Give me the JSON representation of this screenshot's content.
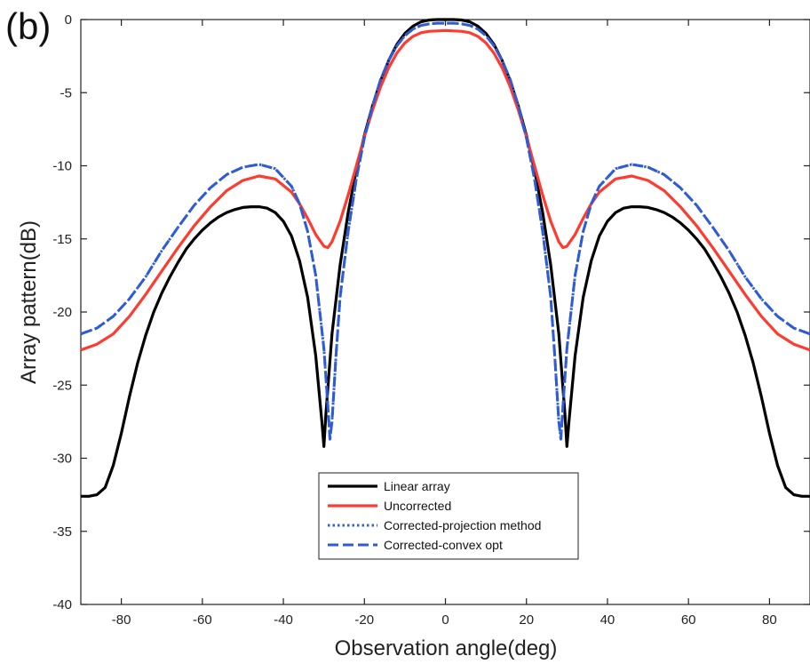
{
  "panel_label": "(b)",
  "chart_data": {
    "type": "line",
    "title": "",
    "xlabel": "Observation angle(deg)",
    "ylabel": "Array pattern(dB)",
    "xlim": [
      -90,
      90
    ],
    "ylim": [
      -40,
      0
    ],
    "xticks": [
      -80,
      -60,
      -40,
      -20,
      0,
      20,
      40,
      60,
      80
    ],
    "yticks": [
      0,
      -5,
      -10,
      -15,
      -20,
      -25,
      -30,
      -35,
      -40
    ],
    "grid": false,
    "legend_position": "lower-center",
    "series": [
      {
        "name": "Linear array",
        "color": "#000000",
        "style": "solid",
        "x": [
          -90,
          -88,
          -86,
          -84,
          -82,
          -80,
          -78,
          -76,
          -74,
          -72,
          -70,
          -68,
          -66,
          -64,
          -62,
          -60,
          -58,
          -56,
          -54,
          -52,
          -50,
          -48,
          -46,
          -44,
          -42,
          -40,
          -38,
          -36,
          -34,
          -32,
          -30.5,
          -30,
          -29.5,
          -28,
          -26,
          -24,
          -22,
          -20,
          -18,
          -16,
          -14,
          -12,
          -10,
          -8,
          -6,
          -4,
          -2,
          0,
          2,
          4,
          6,
          8,
          10,
          12,
          14,
          16,
          18,
          20,
          22,
          24,
          26,
          28,
          29.5,
          30,
          30.5,
          32,
          34,
          36,
          38,
          40,
          42,
          44,
          46,
          48,
          50,
          52,
          54,
          56,
          58,
          60,
          62,
          64,
          66,
          68,
          70,
          72,
          74,
          76,
          78,
          80,
          82,
          84,
          86,
          88,
          90
        ],
        "y": [
          -32.6,
          -32.6,
          -32.5,
          -32.0,
          -30.5,
          -28.3,
          -25.8,
          -23.5,
          -21.6,
          -20.0,
          -18.7,
          -17.6,
          -16.6,
          -15.7,
          -15.0,
          -14.4,
          -13.9,
          -13.5,
          -13.2,
          -13.0,
          -12.85,
          -12.8,
          -12.8,
          -12.9,
          -13.2,
          -13.8,
          -14.8,
          -16.5,
          -19.0,
          -23.0,
          -27.5,
          -29.2,
          -27.0,
          -21.5,
          -16.8,
          -13.2,
          -10.3,
          -7.9,
          -5.9,
          -4.2,
          -2.8,
          -1.7,
          -0.95,
          -0.45,
          -0.15,
          -0.03,
          0,
          0,
          0,
          -0.03,
          -0.15,
          -0.45,
          -0.95,
          -1.7,
          -2.8,
          -4.2,
          -5.9,
          -7.9,
          -10.3,
          -13.2,
          -16.8,
          -21.5,
          -27.0,
          -29.2,
          -27.5,
          -23.0,
          -19.0,
          -16.5,
          -14.8,
          -13.8,
          -13.2,
          -12.9,
          -12.8,
          -12.8,
          -12.85,
          -13.0,
          -13.2,
          -13.5,
          -13.9,
          -14.4,
          -15.0,
          -15.7,
          -16.6,
          -17.6,
          -18.7,
          -20.0,
          -21.6,
          -23.5,
          -25.8,
          -28.3,
          -30.5,
          -32.0,
          -32.5,
          -32.6,
          -32.6
        ]
      },
      {
        "name": "Uncorrected",
        "color": "#ff3b2f",
        "style": "solid",
        "x": [
          -90,
          -86,
          -82,
          -78,
          -74,
          -70,
          -66,
          -62,
          -58,
          -54,
          -50,
          -46,
          -42,
          -38,
          -36,
          -34,
          -32,
          -30,
          -29,
          -28,
          -26,
          -24,
          -22,
          -20,
          -18,
          -16,
          -14,
          -12,
          -10,
          -8,
          -6,
          -4,
          -2,
          0,
          2,
          4,
          6,
          8,
          10,
          12,
          14,
          16,
          18,
          20,
          22,
          24,
          26,
          28,
          29,
          30,
          32,
          34,
          36,
          38,
          42,
          46,
          50,
          54,
          58,
          62,
          66,
          70,
          74,
          78,
          82,
          86,
          90
        ],
        "y": [
          -22.6,
          -22.2,
          -21.5,
          -20.3,
          -18.8,
          -17.2,
          -15.6,
          -14.1,
          -12.8,
          -11.7,
          -11.0,
          -10.7,
          -10.9,
          -11.8,
          -12.6,
          -13.6,
          -14.7,
          -15.5,
          -15.6,
          -15.2,
          -13.8,
          -12.0,
          -10.0,
          -8.0,
          -6.2,
          -4.6,
          -3.3,
          -2.3,
          -1.6,
          -1.15,
          -0.9,
          -0.8,
          -0.78,
          -0.75,
          -0.78,
          -0.8,
          -0.9,
          -1.15,
          -1.6,
          -2.3,
          -3.3,
          -4.6,
          -6.2,
          -8.0,
          -10.0,
          -12.0,
          -13.8,
          -15.2,
          -15.6,
          -15.5,
          -14.7,
          -13.6,
          -12.6,
          -11.8,
          -10.9,
          -10.7,
          -11.0,
          -11.7,
          -12.8,
          -14.1,
          -15.6,
          -17.2,
          -18.8,
          -20.3,
          -21.5,
          -22.2,
          -22.6
        ]
      },
      {
        "name": "Corrected-projection method",
        "color": "#3a5fd0",
        "style": "dotted",
        "x": [
          -90,
          -86,
          -82,
          -78,
          -74,
          -70,
          -66,
          -62,
          -58,
          -54,
          -50,
          -46,
          -42,
          -38,
          -36,
          -34,
          -32,
          -30,
          -29,
          -28.5,
          -28,
          -27,
          -26,
          -24,
          -22,
          -20,
          -18,
          -16,
          -14,
          -12,
          -10,
          -8,
          -6,
          -4,
          -2,
          0,
          2,
          4,
          6,
          8,
          10,
          12,
          14,
          16,
          18,
          20,
          22,
          24,
          26,
          27,
          28,
          28.5,
          29,
          30,
          32,
          34,
          36,
          38,
          42,
          46,
          50,
          54,
          58,
          62,
          66,
          70,
          74,
          78,
          82,
          86,
          90
        ],
        "y": [
          -21.5,
          -21.1,
          -20.3,
          -19.1,
          -17.6,
          -15.8,
          -14.2,
          -12.7,
          -11.5,
          -10.6,
          -10.1,
          -9.9,
          -10.2,
          -11.4,
          -12.6,
          -14.5,
          -17.5,
          -22.5,
          -26.5,
          -28.7,
          -27.5,
          -23.0,
          -19.0,
          -14.5,
          -10.9,
          -8.1,
          -5.9,
          -4.1,
          -2.8,
          -1.8,
          -1.1,
          -0.65,
          -0.4,
          -0.3,
          -0.25,
          -0.25,
          -0.25,
          -0.3,
          -0.4,
          -0.65,
          -1.1,
          -1.8,
          -2.8,
          -4.1,
          -5.9,
          -8.1,
          -10.9,
          -14.5,
          -19.0,
          -23.0,
          -27.5,
          -28.7,
          -26.5,
          -22.5,
          -17.5,
          -14.5,
          -12.6,
          -11.4,
          -10.2,
          -9.9,
          -10.1,
          -10.6,
          -11.5,
          -12.7,
          -14.2,
          -15.8,
          -17.6,
          -19.1,
          -20.3,
          -21.1,
          -21.5
        ]
      },
      {
        "name": "Corrected-convex opt",
        "color": "#2e5bd6",
        "style": "dashed",
        "x": [
          -90,
          -86,
          -82,
          -78,
          -74,
          -70,
          -66,
          -62,
          -58,
          -54,
          -50,
          -46,
          -42,
          -38,
          -36,
          -34,
          -32,
          -30,
          -29,
          -28.5,
          -28,
          -27,
          -26,
          -24,
          -22,
          -20,
          -18,
          -16,
          -14,
          -12,
          -10,
          -8,
          -6,
          -4,
          -2,
          0,
          2,
          4,
          6,
          8,
          10,
          12,
          14,
          16,
          18,
          20,
          22,
          24,
          26,
          27,
          28,
          28.5,
          29,
          30,
          32,
          34,
          36,
          38,
          42,
          46,
          50,
          54,
          58,
          62,
          66,
          70,
          74,
          78,
          82,
          86,
          90
        ],
        "y": [
          -21.5,
          -21.1,
          -20.3,
          -19.1,
          -17.6,
          -15.8,
          -14.2,
          -12.7,
          -11.5,
          -10.6,
          -10.1,
          -9.9,
          -10.2,
          -11.4,
          -12.6,
          -14.5,
          -17.5,
          -22.5,
          -26.5,
          -28.7,
          -27.5,
          -23.0,
          -19.0,
          -14.5,
          -10.9,
          -8.1,
          -5.9,
          -4.1,
          -2.8,
          -1.8,
          -1.1,
          -0.65,
          -0.4,
          -0.3,
          -0.25,
          -0.25,
          -0.25,
          -0.3,
          -0.4,
          -0.65,
          -1.1,
          -1.8,
          -2.8,
          -4.1,
          -5.9,
          -8.1,
          -10.9,
          -14.5,
          -19.0,
          -23.0,
          -27.5,
          -28.7,
          -26.5,
          -22.5,
          -17.5,
          -14.5,
          -12.6,
          -11.4,
          -10.2,
          -9.9,
          -10.1,
          -10.6,
          -11.5,
          -12.7,
          -14.2,
          -15.8,
          -17.6,
          -19.1,
          -20.3,
          -21.1,
          -21.5
        ]
      }
    ]
  }
}
